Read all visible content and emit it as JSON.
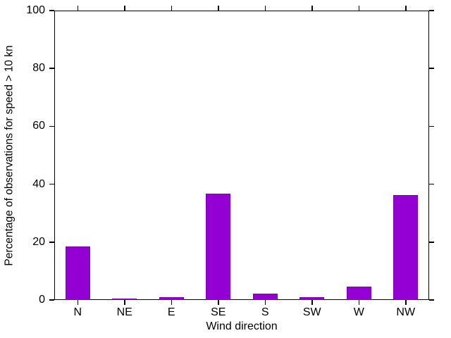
{
  "chart_data": {
    "type": "bar",
    "title": "",
    "categories": [
      "N",
      "NE",
      "E",
      "SE",
      "S",
      "SW",
      "W",
      "NW"
    ],
    "values": [
      18.6,
      0.6,
      0.9,
      36.7,
      2.3,
      0.9,
      4.6,
      36.2
    ],
    "xlabel": "Wind direction",
    "ylabel": "Percentage of observations for speed > 10 kn",
    "ylim": [
      0,
      100
    ],
    "yticks": [
      0,
      20,
      40,
      60,
      80,
      100
    ],
    "bar_color": "#9400d3",
    "bar_border_color": "#8300bb",
    "axis_color": "#000000",
    "grid": false,
    "legend": "none",
    "tick_style": "outward ticks mirrored on all four sides"
  }
}
